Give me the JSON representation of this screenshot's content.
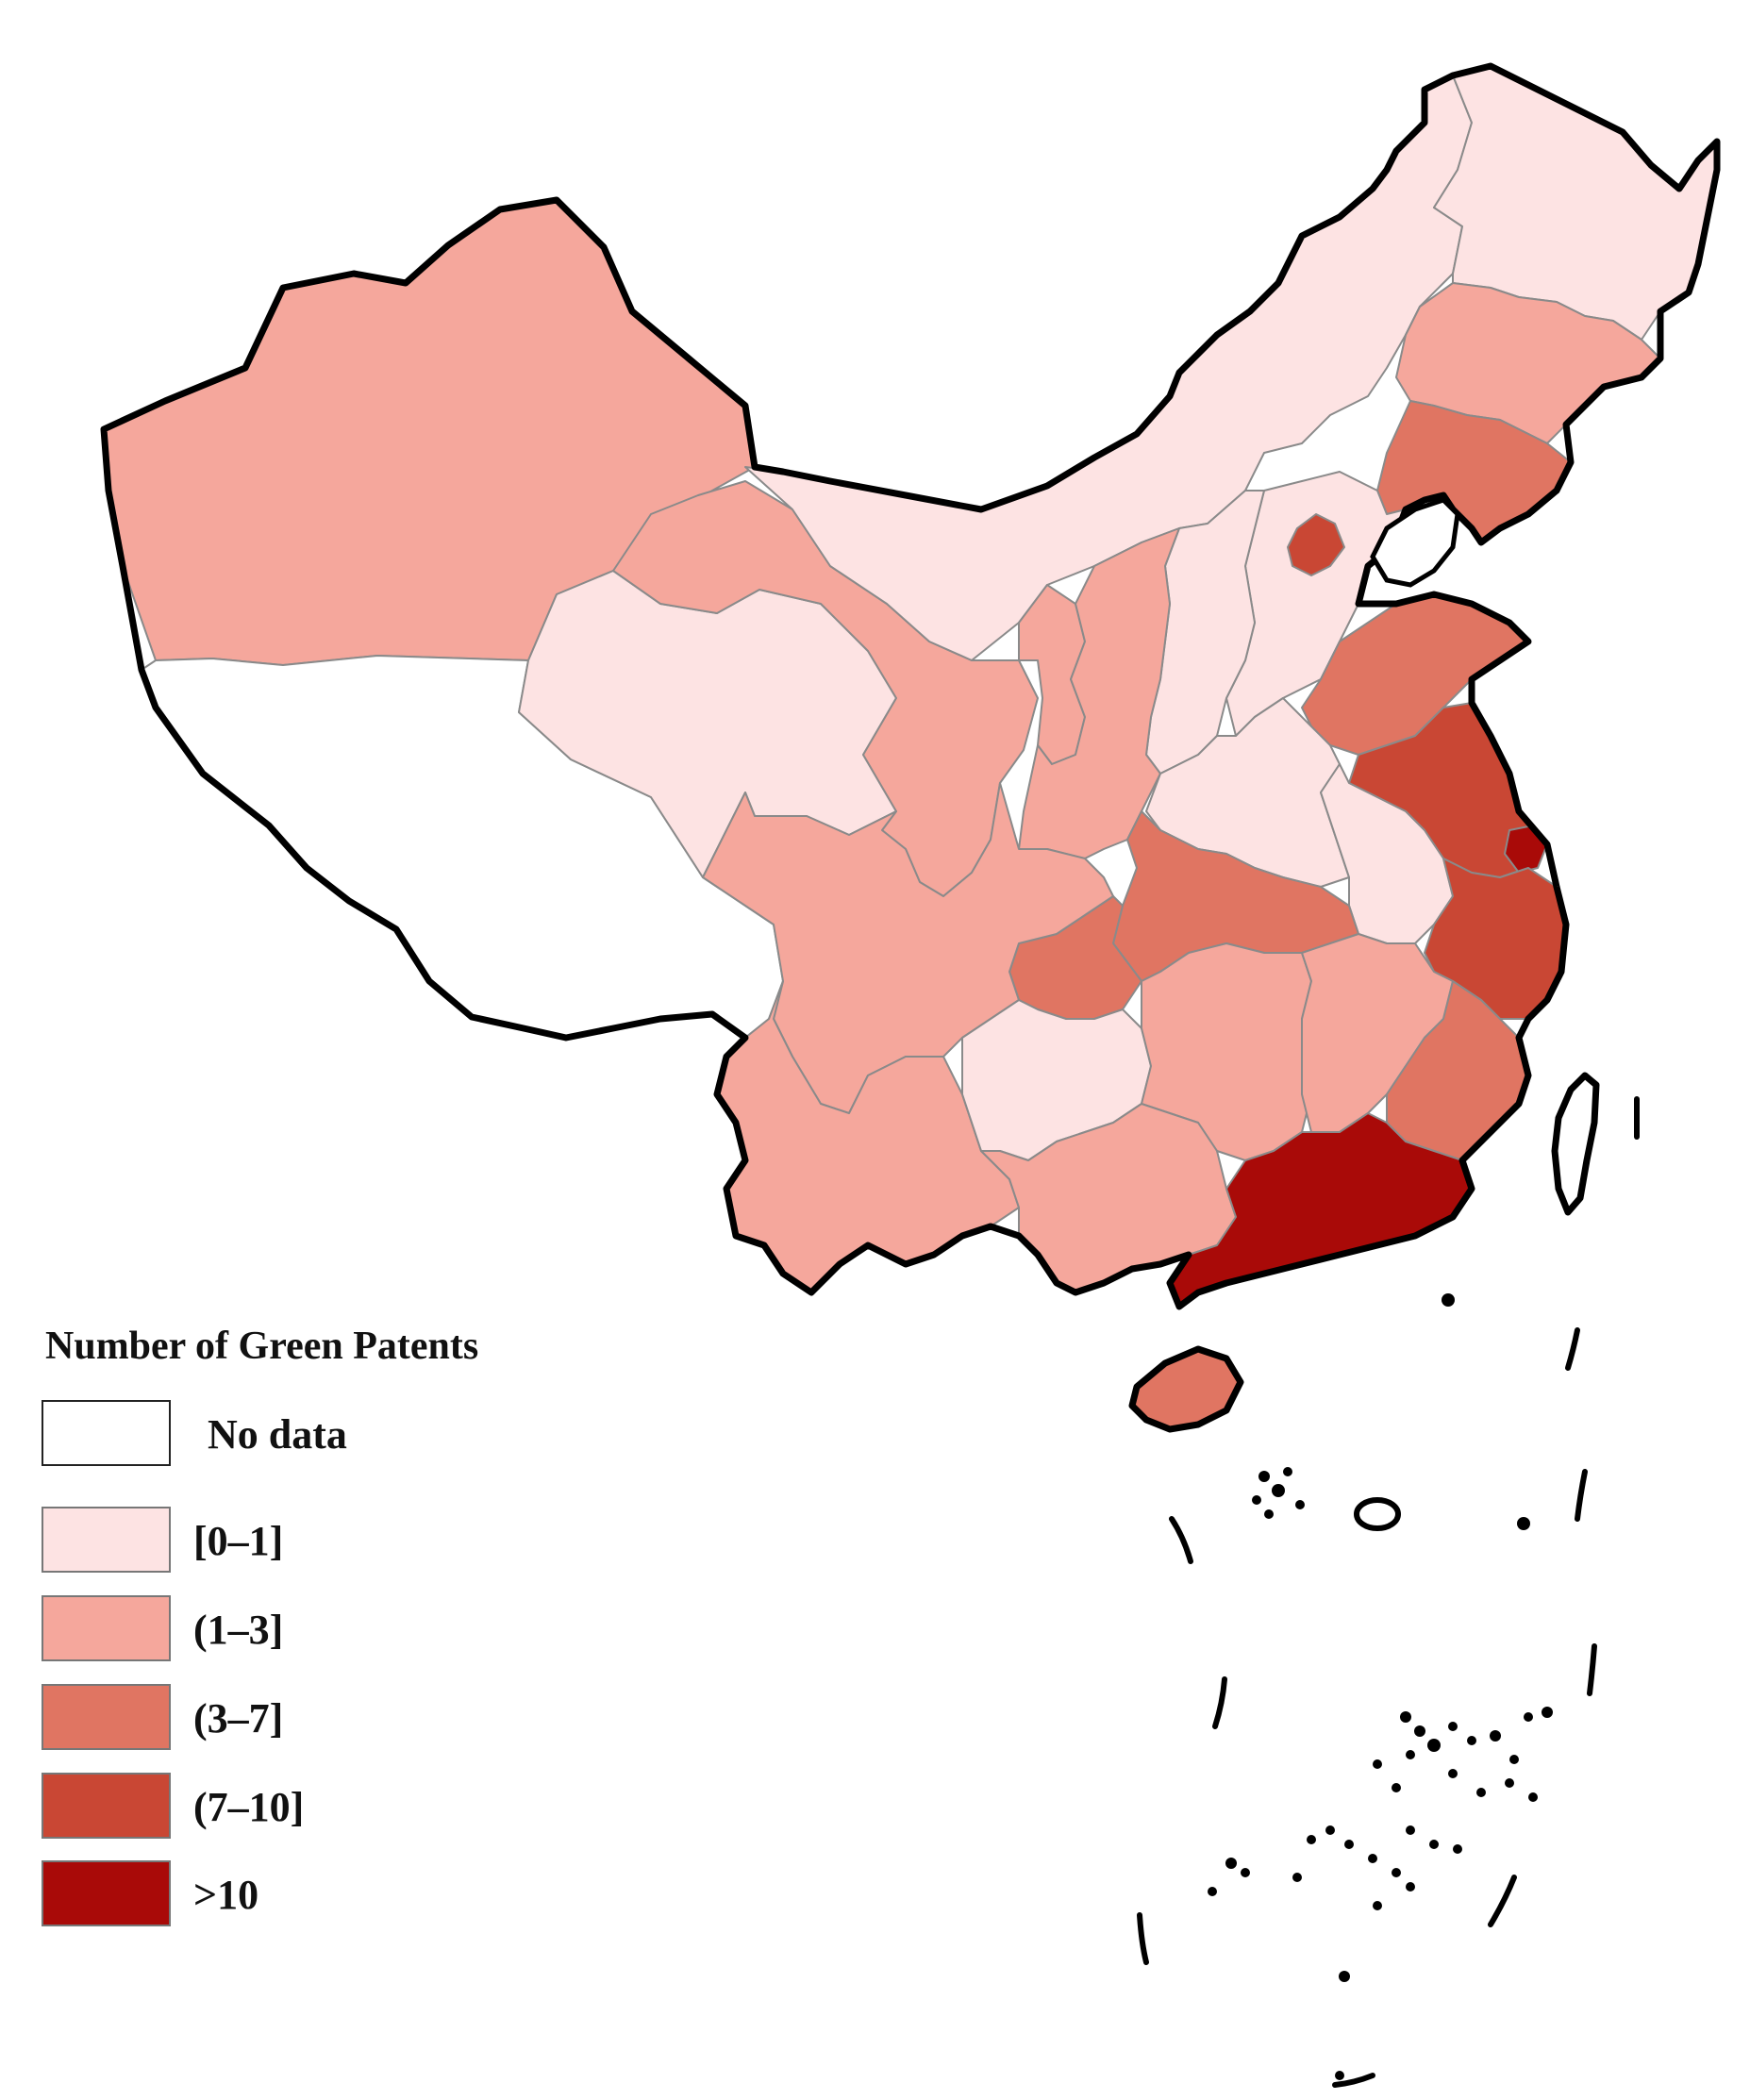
{
  "legend": {
    "title": "Number of Green Patents",
    "classes": [
      {
        "label": "No data",
        "color": "#ffffff"
      },
      {
        "label": "[0–1]",
        "color": "#fde3e3"
      },
      {
        "label": "(1–3]",
        "color": "#f5a79c"
      },
      {
        "label": "(3–7]",
        "color": "#e07562"
      },
      {
        "label": "(7–10]",
        "color": "#c94734"
      },
      {
        "label": ">10",
        "color": "#a90a08"
      }
    ]
  },
  "regions": [
    {
      "id": "xinjiang",
      "class": 2
    },
    {
      "id": "tibet",
      "class": 0
    },
    {
      "id": "qinghai",
      "class": 1
    },
    {
      "id": "gansu",
      "class": 2
    },
    {
      "id": "inner-mongolia",
      "class": 1
    },
    {
      "id": "heilongjiang",
      "class": 1
    },
    {
      "id": "jilin",
      "class": 2
    },
    {
      "id": "liaoning",
      "class": 3
    },
    {
      "id": "hebei",
      "class": 1
    },
    {
      "id": "beijing",
      "class": 4
    },
    {
      "id": "shanxi",
      "class": 1
    },
    {
      "id": "ningxia",
      "class": 2
    },
    {
      "id": "shaanxi",
      "class": 2
    },
    {
      "id": "shandong",
      "class": 3
    },
    {
      "id": "henan",
      "class": 1
    },
    {
      "id": "jiangsu",
      "class": 4
    },
    {
      "id": "shanghai",
      "class": 5
    },
    {
      "id": "anhui",
      "class": 1
    },
    {
      "id": "zhejiang",
      "class": 4
    },
    {
      "id": "hubei",
      "class": 3
    },
    {
      "id": "chongqing",
      "class": 3
    },
    {
      "id": "sichuan",
      "class": 2
    },
    {
      "id": "yunnan",
      "class": 2
    },
    {
      "id": "guizhou",
      "class": 1
    },
    {
      "id": "hunan",
      "class": 2
    },
    {
      "id": "jiangxi",
      "class": 2
    },
    {
      "id": "fujian",
      "class": 3
    },
    {
      "id": "guangxi",
      "class": 2
    },
    {
      "id": "guangdong",
      "class": 5
    },
    {
      "id": "hainan",
      "class": 3
    },
    {
      "id": "taiwan",
      "class": 0
    }
  ]
}
